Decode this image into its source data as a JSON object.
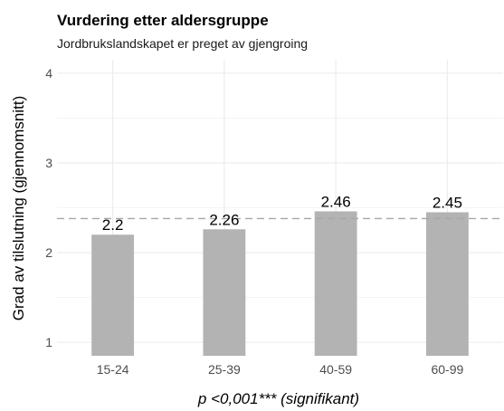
{
  "chart_data": {
    "type": "bar",
    "title": "Vurdering etter aldersgruppe",
    "subtitle": "Jordbrukslandskapet er preget av gjengroing",
    "ylabel": "Grad av tilslutning (gjennomsnitt)",
    "caption": "p <0,001*** (signifikant)",
    "categories": [
      "15-24",
      "25-39",
      "40-59",
      "60-99"
    ],
    "values": [
      2.2,
      2.26,
      2.46,
      2.45
    ],
    "data_labels": [
      "2.2",
      "2.26",
      "2.46",
      "2.45"
    ],
    "reference_line": 2.38,
    "ylim": [
      0.85,
      4.15
    ],
    "yticks": [
      1,
      2,
      3,
      4
    ],
    "grid": true,
    "bar_color": "#b3b3b3",
    "grid_color": "#ebebeb",
    "reference_line_color": "#a6a6a6"
  }
}
